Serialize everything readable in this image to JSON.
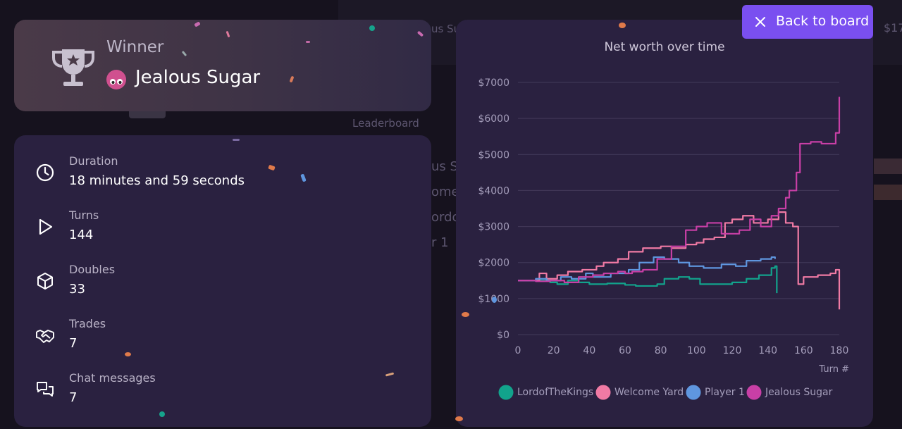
{
  "background": {
    "texts": [
      "Leaderboard",
      "us Sug",
      "ome",
      "ordo",
      "r 1",
      "us Sug",
      "$17"
    ]
  },
  "winner": {
    "label": "Winner",
    "name": "Jealous Sugar",
    "avatar_color": "#d0508f",
    "icon": "trophy-icon"
  },
  "stats": [
    {
      "icon": "clock-icon",
      "label": "Duration",
      "value": "18 minutes and 59 seconds"
    },
    {
      "icon": "play-icon",
      "label": "Turns",
      "value": "144"
    },
    {
      "icon": "cube-icon",
      "label": "Doubles",
      "value": "33"
    },
    {
      "icon": "handshake-icon",
      "label": "Trades",
      "value": "7"
    },
    {
      "icon": "chat-icon",
      "label": "Chat messages",
      "value": "7"
    }
  ],
  "back_button": {
    "label": "Back to board",
    "icon": "close-icon",
    "color": "#7a4ff0"
  },
  "chart_data": {
    "type": "line",
    "title": "Net worth over time",
    "xlabel": "Turn #",
    "ylabel": "",
    "xlim": [
      0,
      180
    ],
    "ylim": [
      0,
      7000
    ],
    "x_ticks": [
      "0",
      "20",
      "40",
      "60",
      "80",
      "100",
      "120",
      "140",
      "160",
      "180"
    ],
    "y_ticks": [
      "$0",
      "$1000",
      "$2000",
      "$3000",
      "$4000",
      "$5000",
      "$6000",
      "$7000"
    ],
    "grid": true,
    "legend_position": "bottom",
    "series": [
      {
        "name": "LordofTheKings",
        "color": "#12a38c",
        "points": [
          [
            0,
            1500
          ],
          [
            12,
            1500
          ],
          [
            18,
            1450
          ],
          [
            22,
            1400
          ],
          [
            28,
            1500
          ],
          [
            34,
            1450
          ],
          [
            40,
            1400
          ],
          [
            50,
            1420
          ],
          [
            60,
            1380
          ],
          [
            66,
            1350
          ],
          [
            78,
            1400
          ],
          [
            82,
            1550
          ],
          [
            90,
            1600
          ],
          [
            96,
            1550
          ],
          [
            102,
            1400
          ],
          [
            115,
            1400
          ],
          [
            120,
            1450
          ],
          [
            128,
            1550
          ],
          [
            135,
            1650
          ],
          [
            142,
            1850
          ],
          [
            144,
            1900
          ],
          [
            145,
            1150
          ]
        ]
      },
      {
        "name": "Welcome Yard",
        "color": "#f07aa4",
        "points": [
          [
            0,
            1500
          ],
          [
            8,
            1500
          ],
          [
            12,
            1700
          ],
          [
            16,
            1550
          ],
          [
            22,
            1650
          ],
          [
            28,
            1750
          ],
          [
            36,
            1800
          ],
          [
            44,
            1900
          ],
          [
            48,
            2000
          ],
          [
            56,
            2100
          ],
          [
            62,
            2300
          ],
          [
            70,
            2400
          ],
          [
            80,
            2450
          ],
          [
            86,
            2400
          ],
          [
            94,
            2500
          ],
          [
            100,
            2550
          ],
          [
            104,
            2650
          ],
          [
            110,
            2700
          ],
          [
            116,
            3100
          ],
          [
            120,
            3200
          ],
          [
            126,
            3300
          ],
          [
            132,
            3100
          ],
          [
            140,
            3200
          ],
          [
            146,
            3400
          ],
          [
            150,
            3100
          ],
          [
            154,
            3000
          ],
          [
            157,
            1400
          ],
          [
            160,
            1600
          ],
          [
            168,
            1650
          ],
          [
            175,
            1700
          ],
          [
            178,
            1800
          ],
          [
            180,
            700
          ]
        ]
      },
      {
        "name": "Player 1",
        "color": "#5f96df",
        "points": [
          [
            0,
            1500
          ],
          [
            10,
            1550
          ],
          [
            16,
            1500
          ],
          [
            24,
            1600
          ],
          [
            30,
            1550
          ],
          [
            38,
            1700
          ],
          [
            42,
            1600
          ],
          [
            52,
            1700
          ],
          [
            62,
            1800
          ],
          [
            68,
            2000
          ],
          [
            76,
            2150
          ],
          [
            82,
            2100
          ],
          [
            90,
            2000
          ],
          [
            96,
            1900
          ],
          [
            104,
            1850
          ],
          [
            114,
            1950
          ],
          [
            122,
            1900
          ],
          [
            128,
            2050
          ],
          [
            136,
            2100
          ],
          [
            142,
            2150
          ],
          [
            144,
            2100
          ]
        ]
      },
      {
        "name": "Jealous Sugar",
        "color": "#c83fa6",
        "points": [
          [
            0,
            1500
          ],
          [
            10,
            1480
          ],
          [
            18,
            1500
          ],
          [
            26,
            1450
          ],
          [
            34,
            1600
          ],
          [
            42,
            1650
          ],
          [
            48,
            1700
          ],
          [
            56,
            1750
          ],
          [
            60,
            1700
          ],
          [
            64,
            1750
          ],
          [
            70,
            1800
          ],
          [
            78,
            2100
          ],
          [
            86,
            2450
          ],
          [
            94,
            2900
          ],
          [
            100,
            3000
          ],
          [
            106,
            3100
          ],
          [
            114,
            2800
          ],
          [
            124,
            2900
          ],
          [
            130,
            3200
          ],
          [
            136,
            3000
          ],
          [
            142,
            3300
          ],
          [
            146,
            3500
          ],
          [
            150,
            3800
          ],
          [
            152,
            4000
          ],
          [
            156,
            4500
          ],
          [
            158,
            5300
          ],
          [
            164,
            5350
          ],
          [
            170,
            5300
          ],
          [
            176,
            5300
          ],
          [
            178,
            5600
          ],
          [
            180,
            6600
          ]
        ]
      }
    ]
  }
}
